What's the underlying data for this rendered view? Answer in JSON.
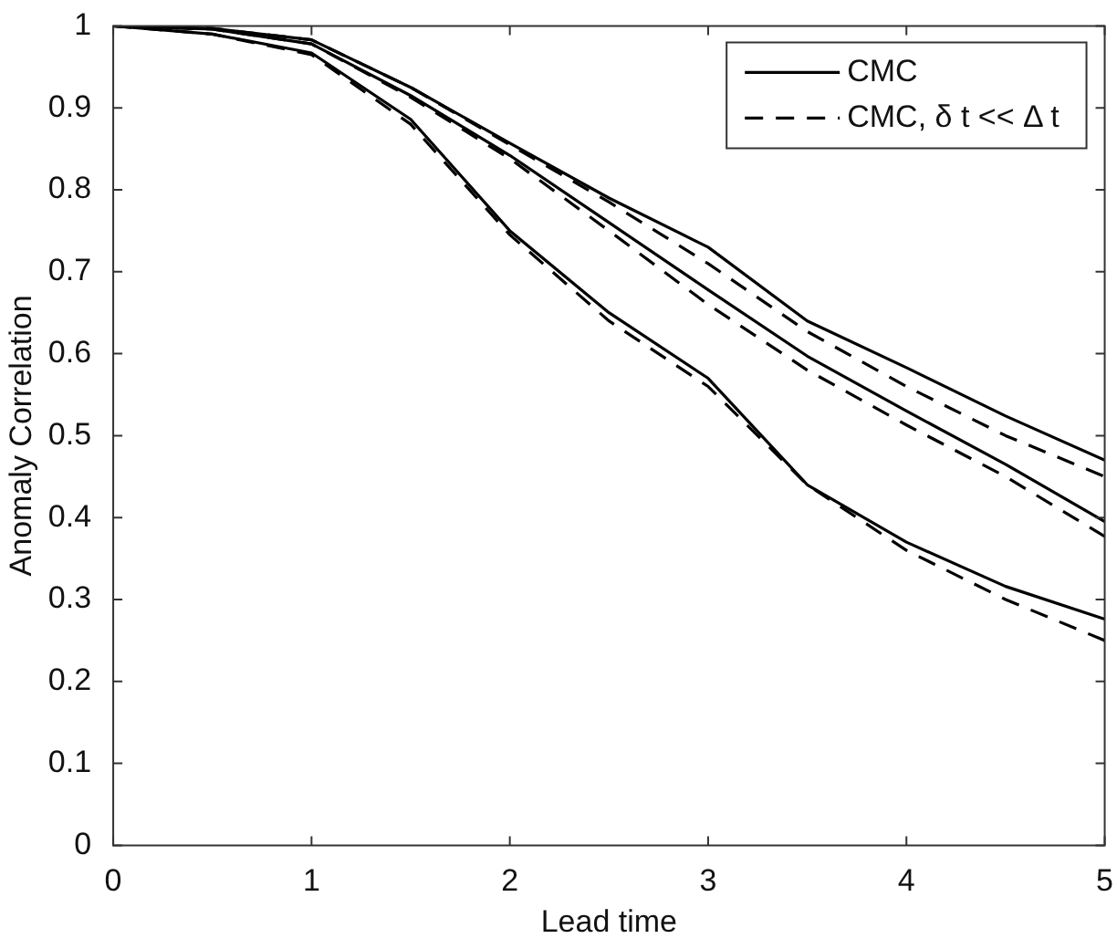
{
  "chart_data": {
    "type": "line",
    "xlabel": "Lead time",
    "ylabel": "Anomaly Correlation",
    "x": [
      0,
      0.5,
      1,
      1.5,
      2,
      2.5,
      3,
      3.5,
      4,
      4.5,
      5
    ],
    "series": [
      {
        "name": "CMC",
        "color": "#000000",
        "line_style": "solid",
        "values": [
          1,
          0.997,
          0.983,
          0.925,
          0.857,
          0.79,
          0.73,
          0.64,
          0.583,
          0.524,
          0.47
        ]
      },
      {
        "name": "CMC, δ t << Δ t",
        "color": "#000000",
        "line_style": "dashed",
        "values": [
          1,
          0.997,
          0.983,
          0.925,
          0.855,
          0.785,
          0.71,
          0.627,
          0.56,
          0.5,
          0.45
        ]
      },
      {
        "color": "#000000",
        "line_style": "solid",
        "values": [
          1,
          0.996,
          0.978,
          0.915,
          0.842,
          0.76,
          0.678,
          0.597,
          0.53,
          0.465,
          0.395
        ]
      },
      {
        "color": "#000000",
        "line_style": "dashed",
        "values": [
          1,
          0.996,
          0.978,
          0.913,
          0.838,
          0.75,
          0.66,
          0.58,
          0.513,
          0.45,
          0.377
        ]
      },
      {
        "color": "#000000",
        "line_style": "solid",
        "values": [
          1,
          0.99,
          0.967,
          0.886,
          0.75,
          0.65,
          0.57,
          0.44,
          0.37,
          0.316,
          0.276
        ]
      },
      {
        "color": "#000000",
        "line_style": "dashed",
        "values": [
          1,
          0.99,
          0.965,
          0.88,
          0.745,
          0.64,
          0.56,
          0.44,
          0.36,
          0.3,
          0.25
        ]
      }
    ],
    "xlim": [
      0,
      5
    ],
    "xticks": [
      0,
      1,
      2,
      3,
      4,
      5
    ],
    "ylim": [
      0,
      1
    ],
    "yticks": [
      0,
      0.1,
      0.2,
      0.3,
      0.4,
      0.5,
      0.6,
      0.7,
      0.8,
      0.9,
      1
    ],
    "grid": false,
    "legend": "top right",
    "marker": "none"
  }
}
